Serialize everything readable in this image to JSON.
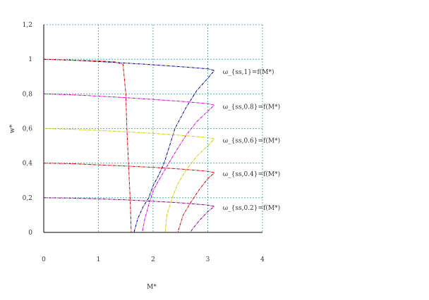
{
  "chart_data": {
    "type": "line",
    "xlabel": "M*",
    "ylabel": "w*",
    "xlim": [
      0,
      4
    ],
    "ylim": [
      0,
      1.2
    ],
    "x_ticks": [
      "0",
      "1",
      "2",
      "3",
      "4"
    ],
    "y_ticks": [
      "0",
      "0,2",
      "0,4",
      "0,6",
      "0,8",
      "1",
      "1,2"
    ],
    "grid": true,
    "series": [
      {
        "label": "ω_{ss,1}=f(M*)",
        "color": "#000080",
        "points": [
          [
            0,
            1.0
          ],
          [
            0.5,
            0.995
          ],
          [
            1.0,
            0.987
          ],
          [
            1.5,
            0.978
          ],
          [
            2.0,
            0.968
          ],
          [
            2.5,
            0.957
          ],
          [
            3.0,
            0.945
          ],
          [
            3.12,
            0.935
          ],
          [
            3.0,
            0.89
          ],
          [
            2.8,
            0.82
          ],
          [
            2.6,
            0.72
          ],
          [
            2.4,
            0.6
          ],
          [
            2.3,
            0.5
          ],
          [
            2.2,
            0.4
          ],
          [
            2.1,
            0.33
          ],
          [
            2.0,
            0.27
          ],
          [
            1.92,
            0.2
          ],
          [
            1.82,
            0.15
          ],
          [
            1.72,
            0.08
          ],
          [
            1.65,
            0.0
          ]
        ]
      },
      {
        "label": "ω_{ss,0.8}=f(M*)",
        "color": "#cc00cc",
        "points": [
          [
            0,
            0.8
          ],
          [
            0.5,
            0.795
          ],
          [
            1.0,
            0.787
          ],
          [
            1.5,
            0.778
          ],
          [
            2.0,
            0.768
          ],
          [
            2.5,
            0.757
          ],
          [
            3.0,
            0.744
          ],
          [
            3.12,
            0.735
          ],
          [
            3.0,
            0.7
          ],
          [
            2.8,
            0.64
          ],
          [
            2.6,
            0.56
          ],
          [
            2.4,
            0.46
          ],
          [
            2.25,
            0.38
          ],
          [
            2.1,
            0.3
          ],
          [
            2.0,
            0.24
          ],
          [
            1.92,
            0.16
          ],
          [
            1.85,
            0.08
          ],
          [
            1.8,
            0.0
          ]
        ]
      },
      {
        "label": "ω_{ss,0.6}=f(M*)",
        "color": "#cccc00",
        "points": [
          [
            0,
            0.6
          ],
          [
            0.5,
            0.596
          ],
          [
            1.0,
            0.589
          ],
          [
            1.5,
            0.581
          ],
          [
            2.0,
            0.572
          ],
          [
            2.5,
            0.561
          ],
          [
            3.0,
            0.548
          ],
          [
            3.12,
            0.54
          ],
          [
            3.0,
            0.5
          ],
          [
            2.8,
            0.44
          ],
          [
            2.6,
            0.36
          ],
          [
            2.45,
            0.28
          ],
          [
            2.35,
            0.2
          ],
          [
            2.25,
            0.1
          ],
          [
            2.22,
            0.0
          ]
        ]
      },
      {
        "label": "ω_{ss,0.4}=f(M*)",
        "color": "#cc0000",
        "points": [
          [
            0,
            0.4
          ],
          [
            0.5,
            0.397
          ],
          [
            1.0,
            0.39
          ],
          [
            1.5,
            0.383
          ],
          [
            2.0,
            0.376
          ],
          [
            2.5,
            0.366
          ],
          [
            3.0,
            0.353
          ],
          [
            3.12,
            0.345
          ],
          [
            3.0,
            0.31
          ],
          [
            2.85,
            0.25
          ],
          [
            2.7,
            0.18
          ],
          [
            2.55,
            0.1
          ],
          [
            2.45,
            0.0
          ]
        ]
      },
      {
        "label": "ω_{ss,0.2}=f(M*)",
        "color": "#800080",
        "points": [
          [
            0,
            0.2
          ],
          [
            0.5,
            0.198
          ],
          [
            1.0,
            0.194
          ],
          [
            1.5,
            0.188
          ],
          [
            2.0,
            0.18
          ],
          [
            2.5,
            0.171
          ],
          [
            3.0,
            0.158
          ],
          [
            3.12,
            0.15
          ],
          [
            3.0,
            0.12
          ],
          [
            2.85,
            0.07
          ],
          [
            2.72,
            0.02
          ],
          [
            2.68,
            0.0
          ]
        ]
      },
      {
        "label": "",
        "color": "#cc0000",
        "points": [
          [
            0,
            1.0
          ],
          [
            0.5,
            0.995
          ],
          [
            1.0,
            0.99
          ],
          [
            1.3,
            0.985
          ],
          [
            1.45,
            0.97
          ],
          [
            1.5,
            0.8
          ],
          [
            1.52,
            0.6
          ],
          [
            1.55,
            0.4
          ],
          [
            1.58,
            0.2
          ],
          [
            1.6,
            0.0
          ]
        ]
      }
    ]
  }
}
